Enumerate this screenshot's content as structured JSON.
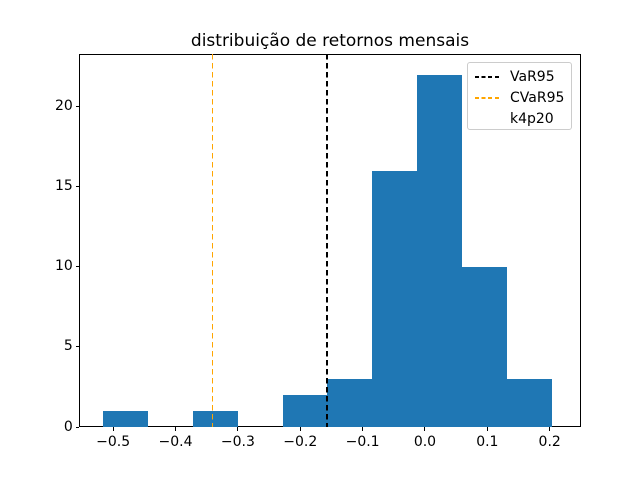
{
  "chart_data": {
    "type": "bar",
    "subtype": "histogram",
    "title": "distribuição de retornos mensais",
    "bar_color": "#1f77b4",
    "bin_edges": [
      -0.5165,
      -0.4445,
      -0.3724,
      -0.3004,
      -0.2283,
      -0.1563,
      -0.0842,
      -0.0122,
      0.0599,
      0.1319,
      0.204
    ],
    "counts": [
      1,
      0,
      1,
      0,
      2,
      3,
      16,
      22,
      10,
      3
    ],
    "xlim": [
      -0.5543,
      0.2502
    ],
    "ylim": [
      0,
      23.34
    ],
    "grid": false,
    "x_ticks": [
      {
        "value": -0.5,
        "label": "−0.5"
      },
      {
        "value": -0.4,
        "label": "−0.4"
      },
      {
        "value": -0.3,
        "label": "−0.3"
      },
      {
        "value": -0.2,
        "label": "−0.2"
      },
      {
        "value": -0.1,
        "label": "−0.1"
      },
      {
        "value": 0.0,
        "label": "0.0"
      },
      {
        "value": 0.1,
        "label": "0.1"
      },
      {
        "value": 0.2,
        "label": "0.2"
      }
    ],
    "y_ticks": [
      {
        "value": 0,
        "label": "0"
      },
      {
        "value": 5,
        "label": "5"
      },
      {
        "value": 10,
        "label": "10"
      },
      {
        "value": 15,
        "label": "15"
      },
      {
        "value": 20,
        "label": "20"
      }
    ],
    "vlines": [
      {
        "name": "VaR95",
        "x": -0.157,
        "color": "#000000",
        "linestyle": "dashed"
      },
      {
        "name": "CVaR95",
        "x": -0.341,
        "color": "#ffa500",
        "linestyle": "dashed"
      }
    ],
    "legend": {
      "position": "upper right",
      "entries": [
        {
          "label": "VaR95",
          "handle": "dashed-line",
          "color": "#000000"
        },
        {
          "label": "CVaR95",
          "handle": "dashed-line",
          "color": "#ffa500"
        },
        {
          "label": "k4p20",
          "handle": "none",
          "color": ""
        }
      ]
    }
  }
}
